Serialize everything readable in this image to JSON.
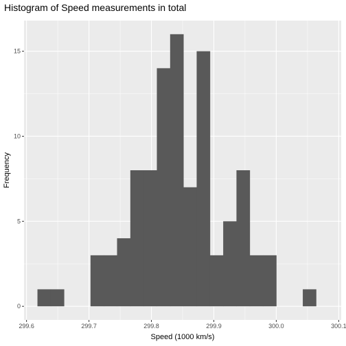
{
  "chart_data": {
    "type": "bar",
    "title": "Histogram of Speed measurements in total",
    "xlabel": "Speed (1000 km/s)",
    "ylabel": "Frequency",
    "xlim": [
      299.596,
      300.104
    ],
    "ylim": [
      -0.8,
      16.8
    ],
    "x_ticks": [
      299.6,
      299.7,
      299.8,
      299.9,
      300.0,
      300.1
    ],
    "x_tick_labels": [
      "299.6",
      "299.7",
      "299.8",
      "299.9",
      "300.0",
      "300.1"
    ],
    "y_ticks": [
      0,
      5,
      10,
      15
    ],
    "y_tick_labels": [
      "0",
      "5",
      "10",
      "15"
    ],
    "bin_width": 0.02125,
    "bins": [
      {
        "x0": 299.6175,
        "x1": 299.63875,
        "count": 1
      },
      {
        "x0": 299.63875,
        "x1": 299.66,
        "count": 1
      },
      {
        "x0": 299.66,
        "x1": 299.68125,
        "count": 0
      },
      {
        "x0": 299.68125,
        "x1": 299.7025,
        "count": 0
      },
      {
        "x0": 299.7025,
        "x1": 299.72375,
        "count": 3
      },
      {
        "x0": 299.72375,
        "x1": 299.745,
        "count": 3
      },
      {
        "x0": 299.745,
        "x1": 299.76625,
        "count": 4
      },
      {
        "x0": 299.76625,
        "x1": 299.7875,
        "count": 8
      },
      {
        "x0": 299.7875,
        "x1": 299.80875,
        "count": 8
      },
      {
        "x0": 299.80875,
        "x1": 299.83,
        "count": 14
      },
      {
        "x0": 299.83,
        "x1": 299.85125,
        "count": 16
      },
      {
        "x0": 299.85125,
        "x1": 299.8725,
        "count": 7
      },
      {
        "x0": 299.8725,
        "x1": 299.89375,
        "count": 15
      },
      {
        "x0": 299.89375,
        "x1": 299.915,
        "count": 3
      },
      {
        "x0": 299.915,
        "x1": 299.93625,
        "count": 5
      },
      {
        "x0": 299.93625,
        "x1": 299.9575,
        "count": 8
      },
      {
        "x0": 299.9575,
        "x1": 299.97875,
        "count": 3
      },
      {
        "x0": 299.97875,
        "x1": 300.0,
        "count": 3
      },
      {
        "x0": 300.0,
        "x1": 300.02125,
        "count": 0
      },
      {
        "x0": 300.02125,
        "x1": 300.0425,
        "count": 0
      },
      {
        "x0": 300.0425,
        "x1": 300.06375,
        "count": 1
      }
    ],
    "grid": true,
    "colors": {
      "panel": "#ebebeb",
      "grid_major": "#ffffff",
      "bar": "#595959",
      "tick_label": "#4d4d4d",
      "tick_mark": "#333333"
    }
  }
}
